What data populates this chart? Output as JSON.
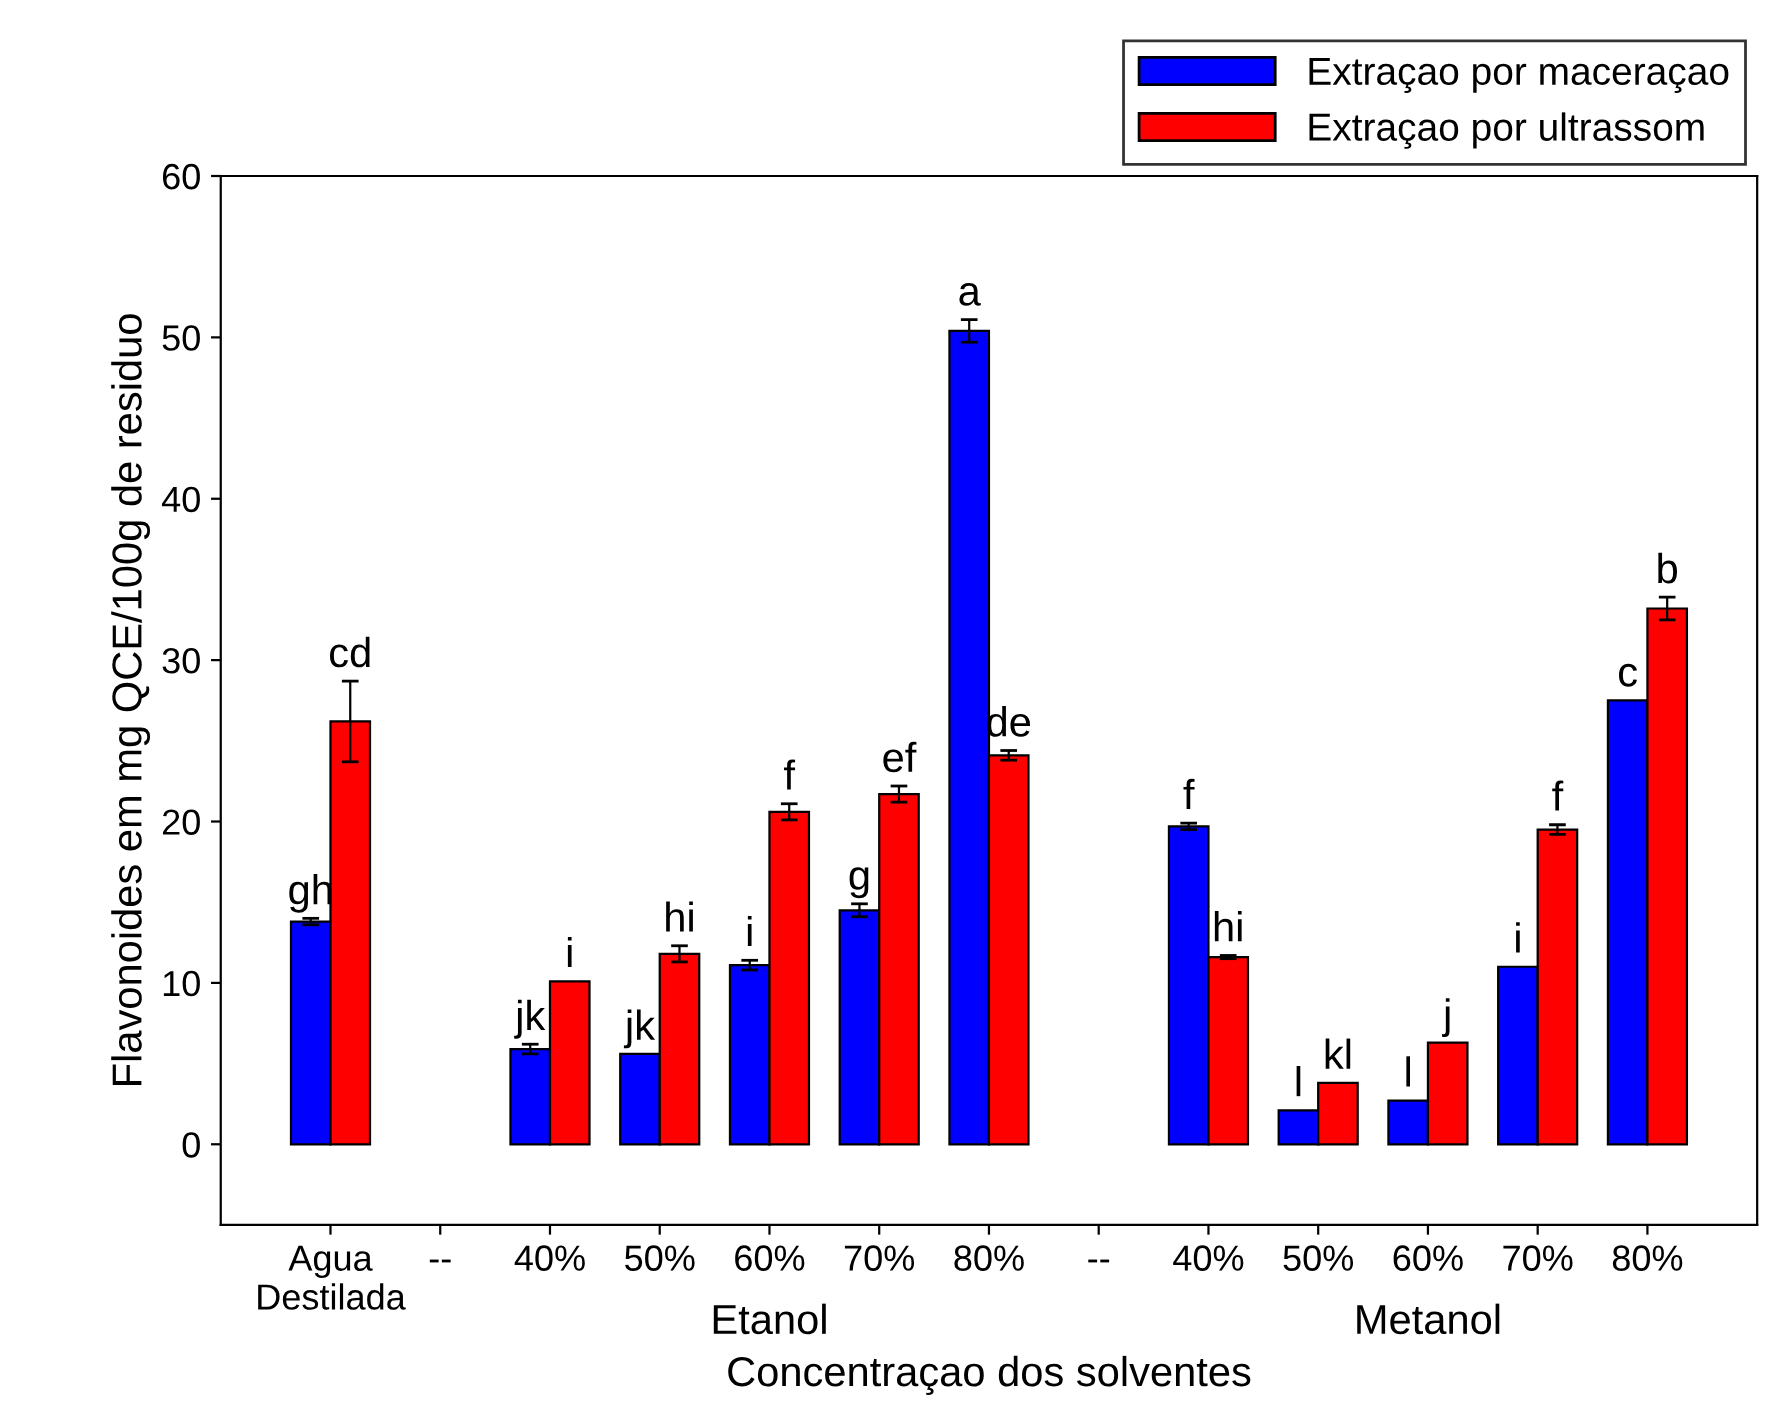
{
  "chart_data": {
    "type": "bar",
    "xlabel": "Concentraçao dos solventes",
    "ylabel": "Flavonoides em mg QCE/100g de residuo",
    "categories": [
      "Agua\nDestilada",
      "--",
      "40%",
      "50%",
      "60%",
      "70%",
      "80%",
      "--",
      "40%",
      "50%",
      "60%",
      "70%",
      "80%"
    ],
    "series": [
      {
        "name": "Extraçao por maceraçao",
        "color": "#0000ff",
        "values": [
          13.8,
          null,
          5.9,
          5.6,
          11.1,
          14.5,
          50.4,
          null,
          19.7,
          2.1,
          2.7,
          11.0,
          27.5
        ],
        "errors": [
          0.2,
          null,
          0.3,
          null,
          0.3,
          0.4,
          0.7,
          null,
          0.2,
          null,
          null,
          null,
          null
        ],
        "value_labels": [
          "gh",
          null,
          "jk",
          "jk",
          "i",
          "g",
          "a",
          null,
          "f",
          "l",
          "l",
          "i",
          "c"
        ]
      },
      {
        "name": "Extraçao por ultrassom",
        "color": "#ff0000",
        "values": [
          26.2,
          null,
          10.1,
          11.8,
          20.6,
          21.7,
          24.1,
          null,
          11.6,
          3.8,
          6.3,
          19.5,
          33.2
        ],
        "errors": [
          2.5,
          null,
          null,
          0.5,
          0.5,
          0.5,
          0.3,
          null,
          0.1,
          null,
          null,
          0.3,
          0.7
        ],
        "value_labels": [
          "cd",
          null,
          "i",
          "hi",
          "f",
          "ef",
          "de",
          null,
          "hi",
          "kl",
          "j",
          "f",
          "b"
        ]
      }
    ],
    "annotations": [
      "Etanol",
      "Metanol"
    ],
    "ylim": [
      -5,
      60
    ],
    "yticks": [
      0,
      10,
      20,
      30,
      40,
      50,
      60
    ],
    "grid": false,
    "legend": "top right"
  }
}
